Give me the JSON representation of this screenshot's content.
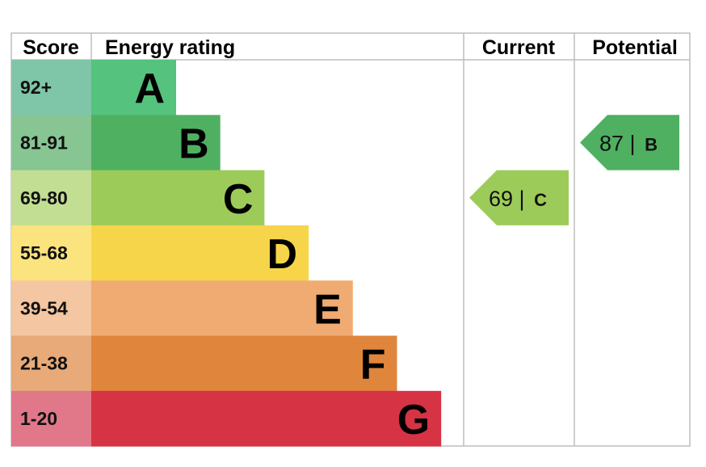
{
  "chart_data": {
    "type": "bar",
    "headers": {
      "score": "Score",
      "rating": "Energy rating",
      "current": "Current",
      "potential": "Potential"
    },
    "bands": [
      {
        "letter": "A",
        "score_range": "92+",
        "color": "#55c27e",
        "score_bg": "#7fc5a8"
      },
      {
        "letter": "B",
        "score_range": "81-91",
        "color": "#4fb061",
        "score_bg": "#87c593"
      },
      {
        "letter": "C",
        "score_range": "69-80",
        "color": "#9dcb5a",
        "score_bg": "#c2de92"
      },
      {
        "letter": "D",
        "score_range": "55-68",
        "color": "#f7d54a",
        "score_bg": "#fbe37e"
      },
      {
        "letter": "E",
        "score_range": "39-54",
        "color": "#f0ab72",
        "score_bg": "#f4c6a1"
      },
      {
        "letter": "F",
        "score_range": "21-38",
        "color": "#e0853c",
        "score_bg": "#e8aa78"
      },
      {
        "letter": "G",
        "score_range": "1-20",
        "color": "#d63344",
        "score_bg": "#e0788a"
      }
    ],
    "current": {
      "value": "69",
      "letter": "C",
      "color": "#9dcb5a"
    },
    "potential": {
      "value": "87",
      "letter": "B",
      "color": "#4fb061"
    },
    "separator": "|"
  }
}
